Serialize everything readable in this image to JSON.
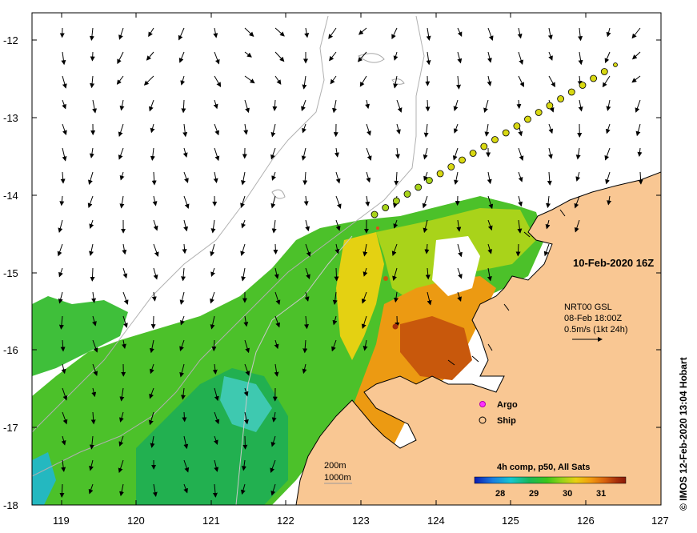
{
  "map": {
    "lon_ticks": [
      "119",
      "120",
      "121",
      "122",
      "123",
      "124",
      "125",
      "126",
      "127"
    ],
    "lat_ticks": [
      "-12",
      "-13",
      "-14",
      "-15",
      "-16",
      "-17",
      "-18"
    ],
    "date_label": "10-Feb-2020 16Z",
    "current_legend": {
      "line1": "NRT00 GSL",
      "line2": "08-Feb 18:00Z",
      "line3": "0.5m/s (1kt 24h)"
    },
    "markers_legend": {
      "argo": "Argo",
      "ship": "Ship"
    },
    "isobath_legend": {
      "line1": "200m",
      "line2": "1000m"
    },
    "colorbar": {
      "title": "4h comp, p50, All Sats",
      "ticks": [
        "28",
        "29",
        "30",
        "31"
      ],
      "colors": [
        "#0b1bb0",
        "#1a7de0",
        "#17c7d0",
        "#18b85a",
        "#3cc61a",
        "#9ad31a",
        "#e8d012",
        "#f29a10",
        "#d8620e",
        "#a8300b",
        "#8a1808"
      ]
    },
    "credit": "© IMOS 12-Feb-2020 13:04 Hobart",
    "colors": {
      "land": "#f9c793",
      "coast": "#000000",
      "bathy": "#b0b0b0"
    }
  }
}
